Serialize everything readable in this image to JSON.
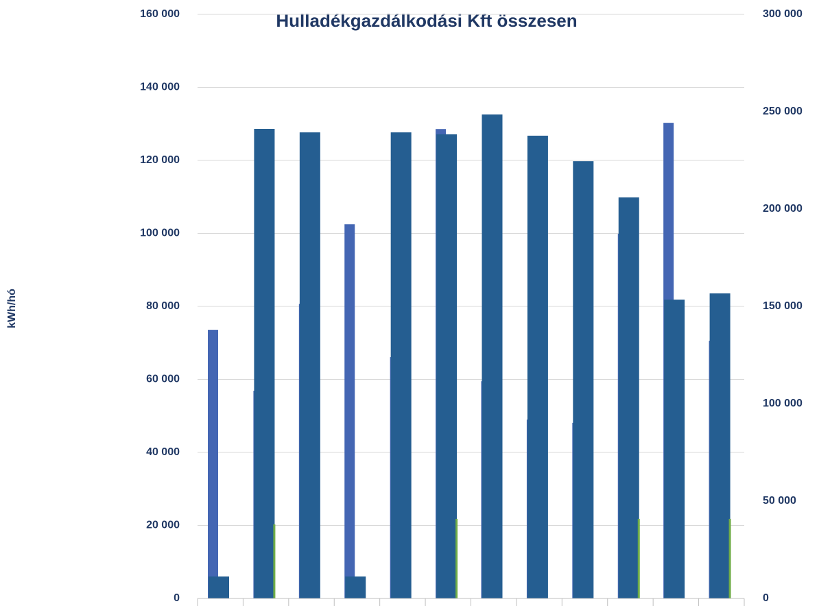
{
  "chart_data": {
    "type": "bar",
    "title": "Hulladékgazdálkodási Kft összesen",
    "ylabel": "kWh/hó",
    "categories": [
      null,
      null,
      null,
      null,
      null,
      null,
      null,
      null,
      null,
      null,
      null,
      null
    ],
    "series": [
      {
        "color": "#4466b3",
        "axis": "y",
        "values": [
          73600,
          56900,
          80700,
          102500,
          66100,
          128600,
          59500,
          49000,
          48100,
          99900,
          130300,
          70600
        ]
      },
      {
        "color": "#255e91",
        "axis": "y2",
        "values": [
          11300,
          241200,
          239400,
          11300,
          239400,
          238400,
          248600,
          237700,
          224600,
          206000,
          153500,
          156700
        ]
      },
      {
        "color": "#70ad47",
        "axis": "y",
        "values": [
          null,
          20300,
          null,
          null,
          null,
          21800,
          null,
          null,
          null,
          21800,
          null,
          21800
        ]
      }
    ],
    "ylim": [
      0,
      160000
    ],
    "yticks": [
      {
        "value": 0,
        "label": "0"
      },
      {
        "value": 20000,
        "label": "20 000"
      },
      {
        "value": 40000,
        "label": "40 000"
      },
      {
        "value": 60000,
        "label": "60 000"
      },
      {
        "value": 80000,
        "label": "80 000"
      },
      {
        "value": 100000,
        "label": "100 000"
      },
      {
        "value": 120000,
        "label": "120 000"
      },
      {
        "value": 140000,
        "label": "140 000"
      },
      {
        "value": 160000,
        "label": "160 000"
      }
    ],
    "y2lim": [
      0,
      300000
    ],
    "y2ticks": [
      {
        "value": 0,
        "label": "0"
      },
      {
        "value": 50000,
        "label": "50 000"
      },
      {
        "value": 100000,
        "label": "100 000"
      },
      {
        "value": 150000,
        "label": "150 000"
      },
      {
        "value": 200000,
        "label": "200 000"
      },
      {
        "value": 250000,
        "label": "250 000"
      },
      {
        "value": 300000,
        "label": "300 000"
      }
    ],
    "grid": true
  }
}
